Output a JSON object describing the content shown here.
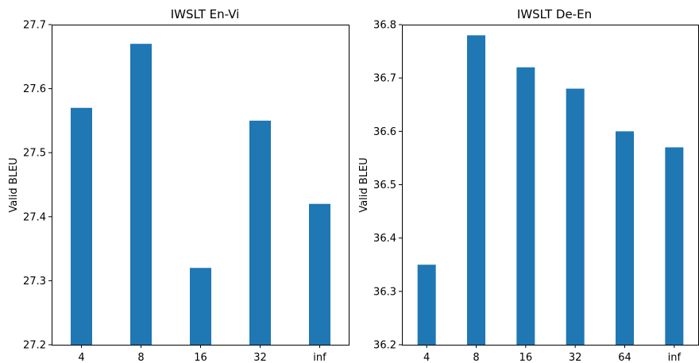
{
  "chart_data": [
    {
      "type": "bar",
      "title": "IWSLT En-Vi",
      "xlabel": "",
      "ylabel": "Valid BLEU",
      "categories": [
        "4",
        "8",
        "16",
        "32",
        "inf"
      ],
      "values": [
        27.57,
        27.67,
        27.32,
        27.55,
        27.42
      ],
      "ylim": [
        27.2,
        27.7
      ],
      "yticks": [
        "27.2",
        "27.3",
        "27.4",
        "27.5",
        "27.6",
        "27.7"
      ],
      "bar_color": "#1f77b4",
      "grid": false
    },
    {
      "type": "bar",
      "title": "IWSLT De-En",
      "xlabel": "",
      "ylabel": "Valid BLEU",
      "categories": [
        "4",
        "8",
        "16",
        "32",
        "64",
        "inf"
      ],
      "values": [
        36.35,
        36.78,
        36.72,
        36.68,
        36.6,
        36.57
      ],
      "ylim": [
        36.2,
        36.8
      ],
      "yticks": [
        "36.2",
        "36.3",
        "36.4",
        "36.5",
        "36.6",
        "36.7",
        "36.8"
      ],
      "bar_color": "#1f77b4",
      "grid": false
    }
  ]
}
